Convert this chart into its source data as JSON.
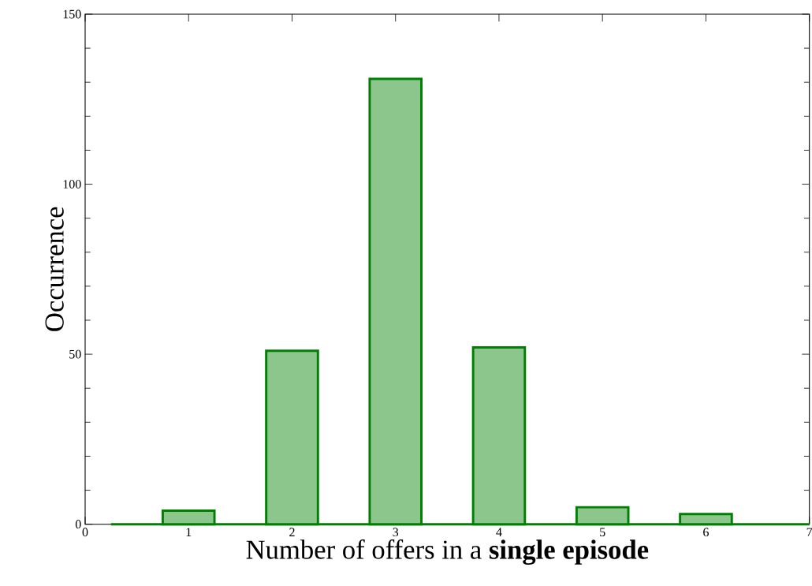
{
  "chart_data": {
    "type": "bar",
    "xlabel": "Number of offers in a **single episode**",
    "ylabel": "Occurrence",
    "x": [
      1,
      2,
      3,
      4,
      5,
      6
    ],
    "values": [
      4,
      51,
      131,
      52,
      5,
      3
    ],
    "color": "#008000",
    "xlim": [
      0,
      7
    ],
    "xticks": [
      0,
      1,
      2,
      3,
      4,
      5,
      6,
      7
    ],
    "ylim": [
      0,
      150
    ],
    "yticks": [
      0,
      50,
      100,
      150
    ]
  }
}
